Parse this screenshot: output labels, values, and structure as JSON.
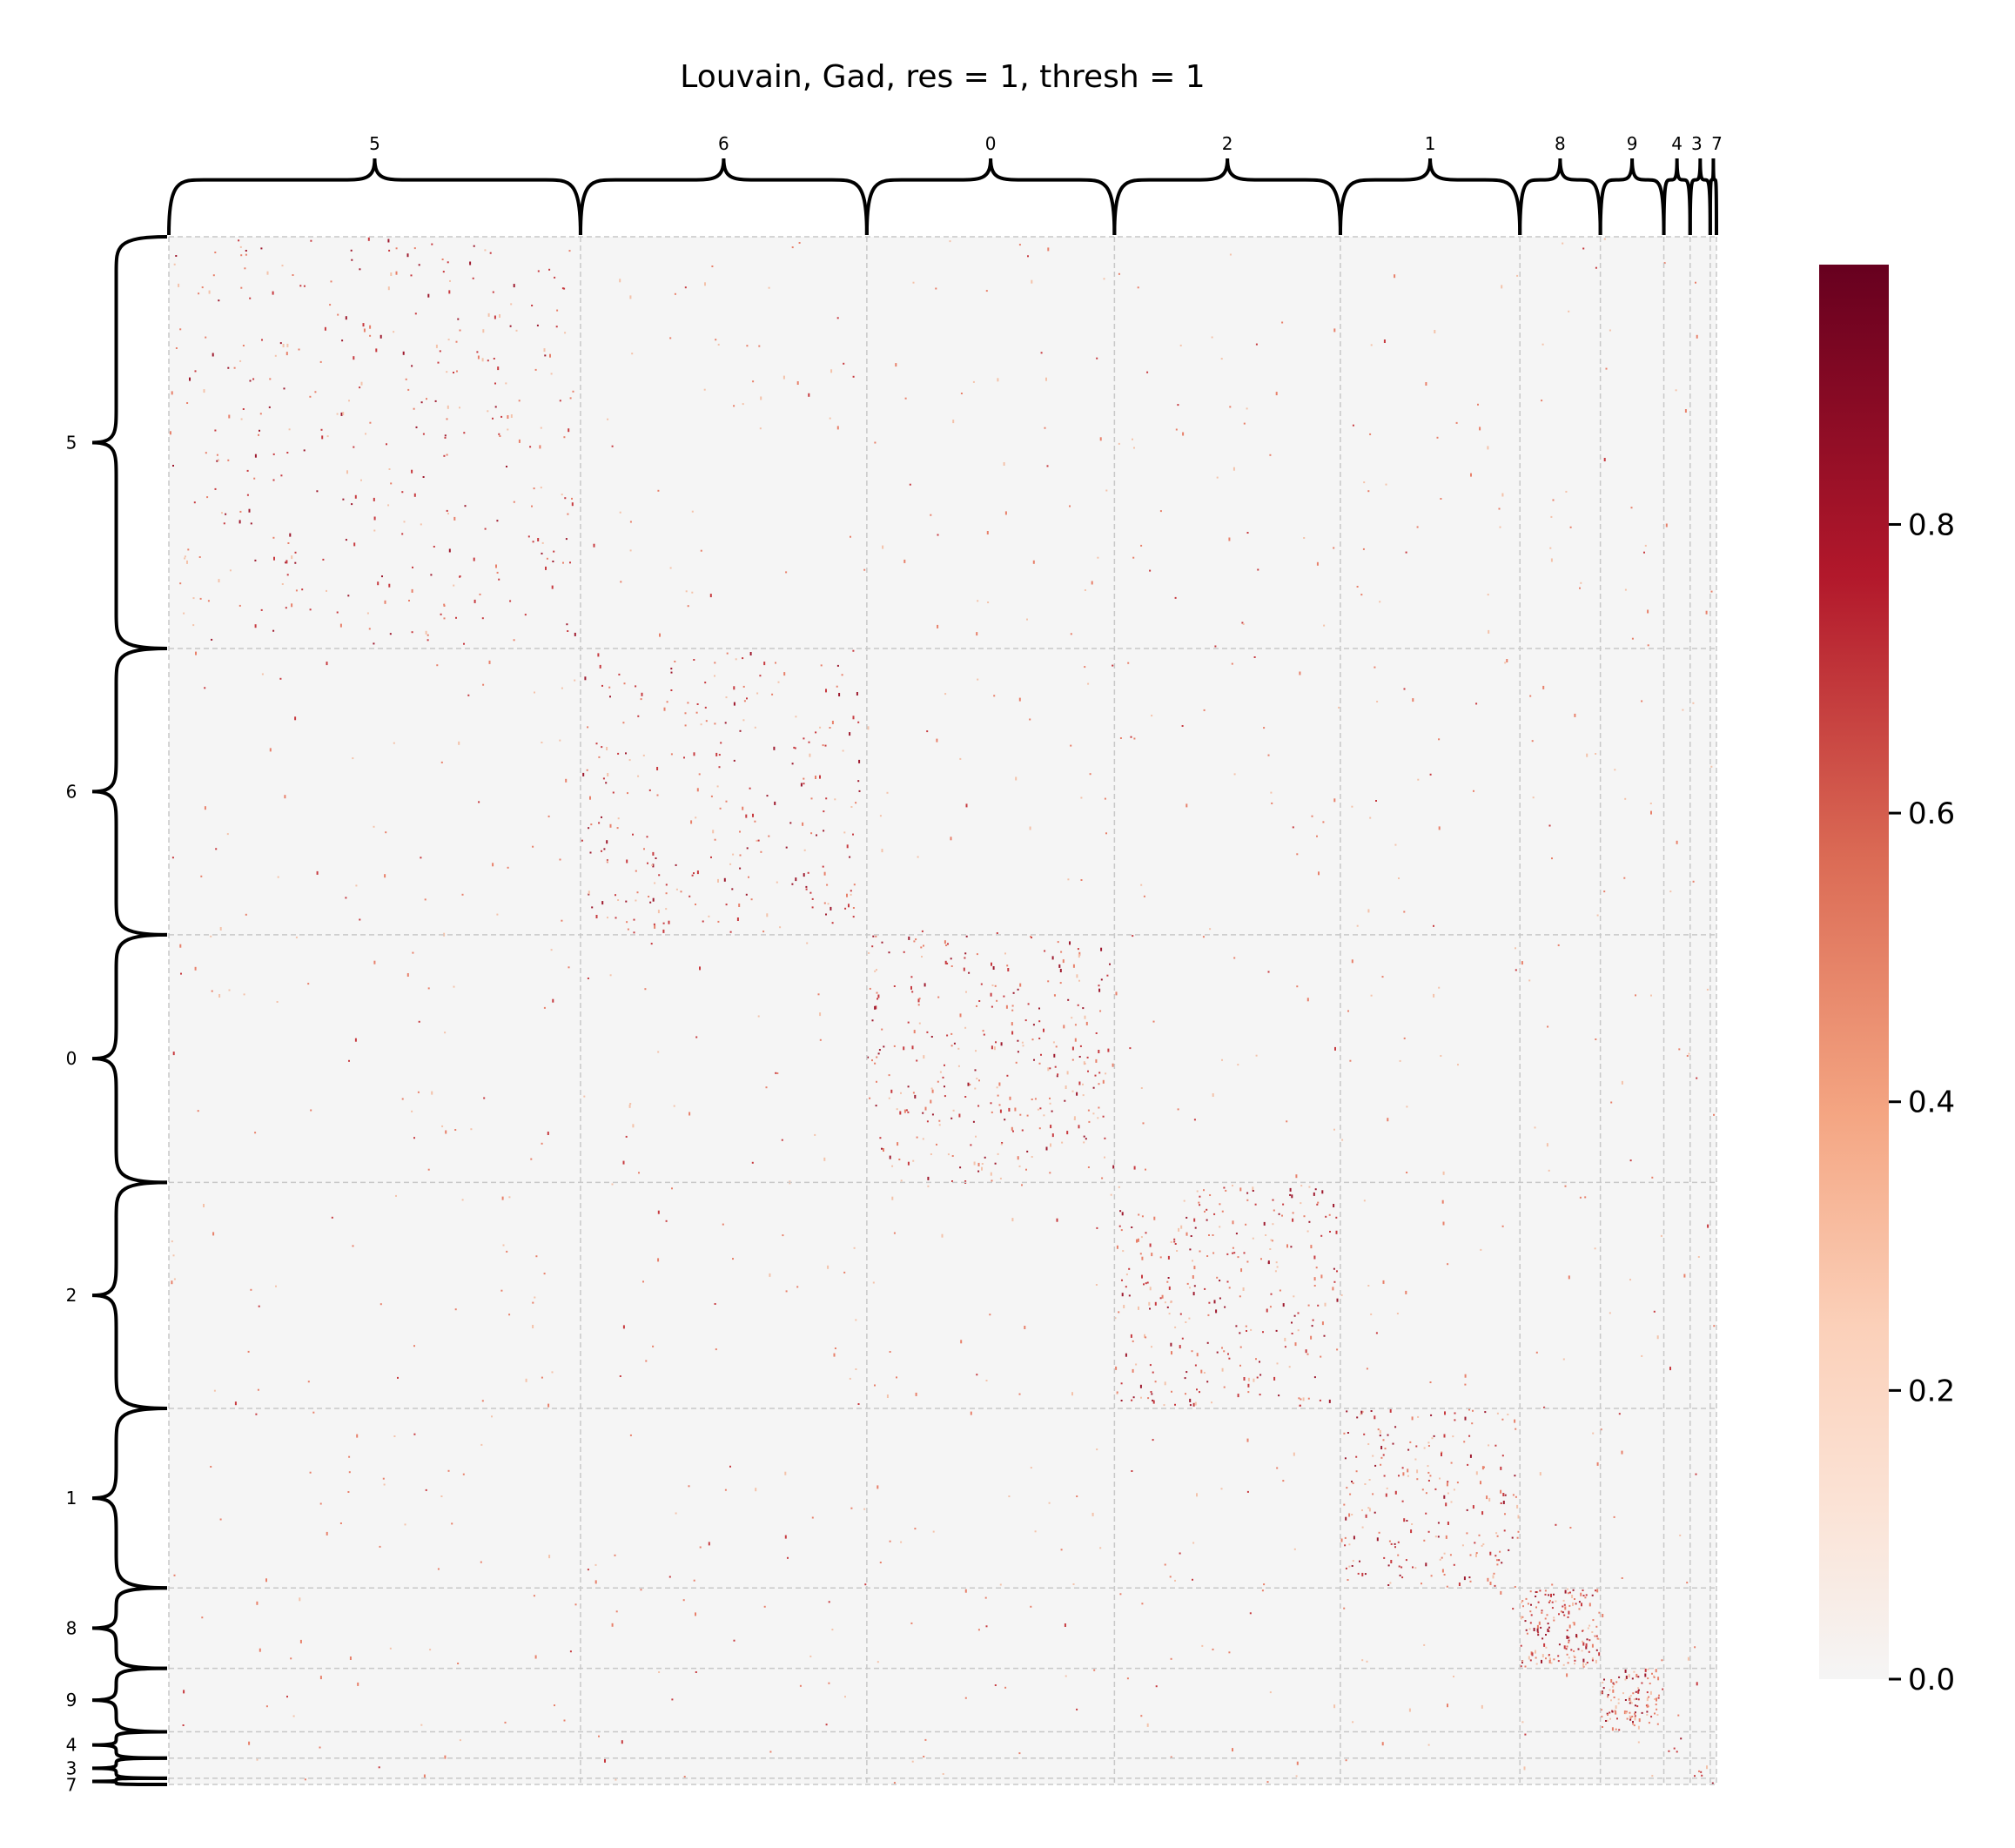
{
  "chart_data": {
    "type": "heatmap",
    "title": "Louvain, Gad, res = 1, thresh = 1",
    "xlabel": "",
    "ylabel": "",
    "colormap": "RdBu_r (upper half)",
    "colors": {
      "zero": "#f5f5f5",
      "mid": "#f4a582",
      "high": "#b2182b",
      "max": "#67001f",
      "grid": "#c8c8c8",
      "brace": "#000000"
    },
    "vmin": 0.0,
    "vmax": 0.98,
    "colorbar_ticks": [
      {
        "value": 0.0,
        "label": "0.0"
      },
      {
        "value": 0.2,
        "label": "0.2"
      },
      {
        "value": 0.4,
        "label": "0.4"
      },
      {
        "value": 0.6,
        "label": "0.6"
      },
      {
        "value": 0.8,
        "label": "0.8"
      }
    ],
    "clusters": [
      {
        "label": "5",
        "size": 0.266,
        "density": 0.018
      },
      {
        "label": "6",
        "size": 0.185,
        "density": 0.028
      },
      {
        "label": "0",
        "size": 0.16,
        "density": 0.045
      },
      {
        "label": "2",
        "size": 0.146,
        "density": 0.05
      },
      {
        "label": "1",
        "size": 0.116,
        "density": 0.06
      },
      {
        "label": "8",
        "size": 0.052,
        "density": 0.22
      },
      {
        "label": "9",
        "size": 0.041,
        "density": 0.25
      },
      {
        "label": "4",
        "size": 0.017,
        "density": 0.05
      },
      {
        "label": "3",
        "size": 0.013,
        "density": 0.1
      },
      {
        "label": "7",
        "size": 0.004,
        "density": 0.3
      }
    ],
    "off_diagonal_density": 0.0025
  }
}
